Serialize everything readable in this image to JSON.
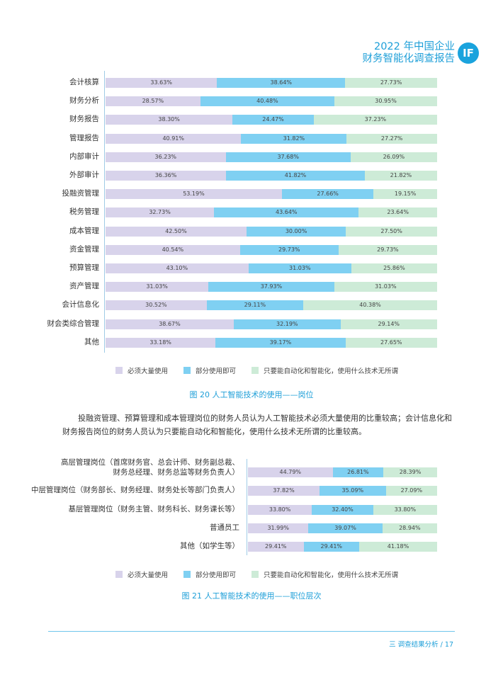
{
  "header": {
    "line1": "2022 年中国企业",
    "line2": "财务智能化调查报告",
    "logo": "IF"
  },
  "legend": {
    "a": "必须大量使用",
    "b": "部分使用即可",
    "c": "只要能自动化和智能化，使用什么技术无所谓"
  },
  "colors": {
    "a": "#d8d3eb",
    "b": "#7fd0f2",
    "c": "#cdebd7",
    "accent": "#1e9fd8"
  },
  "chart1": {
    "caption": "图 20  人工智能技术的使用——岗位",
    "rows": [
      {
        "label": "会计核算",
        "a": "33.63%",
        "b": "38.64%",
        "c": "27.73%"
      },
      {
        "label": "财务分析",
        "a": "28.57%",
        "b": "40.48%",
        "c": "30.95%"
      },
      {
        "label": "财务报告",
        "a": "38.30%",
        "b": "24.47%",
        "c": "37.23%"
      },
      {
        "label": "管理报告",
        "a": "40.91%",
        "b": "31.82%",
        "c": "27.27%"
      },
      {
        "label": "内部审计",
        "a": "36.23%",
        "b": "37.68%",
        "c": "26.09%"
      },
      {
        "label": "外部审计",
        "a": "36.36%",
        "b": "41.82%",
        "c": "21.82%"
      },
      {
        "label": "投融资管理",
        "a": "53.19%",
        "b": "27.66%",
        "c": "19.15%"
      },
      {
        "label": "税务管理",
        "a": "32.73%",
        "b": "43.64%",
        "c": "23.64%"
      },
      {
        "label": "成本管理",
        "a": "42.50%",
        "b": "30.00%",
        "c": "27.50%"
      },
      {
        "label": "资金管理",
        "a": "40.54%",
        "b": "29.73%",
        "c": "29.73%"
      },
      {
        "label": "预算管理",
        "a": "43.10%",
        "b": "31.03%",
        "c": "25.86%"
      },
      {
        "label": "资产管理",
        "a": "31.03%",
        "b": "37.93%",
        "c": "31.03%"
      },
      {
        "label": "会计信息化",
        "a": "30.52%",
        "b": "29.11%",
        "c": "40.38%"
      },
      {
        "label": "财会类综合管理",
        "a": "38.67%",
        "b": "32.19%",
        "c": "29.14%"
      },
      {
        "label": "其他",
        "a": "33.18%",
        "b": "39.17%",
        "c": "27.65%"
      }
    ]
  },
  "paragraph": "投融资管理、预算管理和成本管理岗位的财务人员认为人工智能技术必须大量使用的比重较高；会计信息化和财务报告岗位的财务人员认为只要能自动化和智能化，使用什么技术无所谓的比重较高。",
  "chart2": {
    "caption": "图 21   人工智能技术的使用——职位层次",
    "rows": [
      {
        "label1": "高层管理岗位（首席财务官、总会计师、财务副总裁、",
        "label2": "财务总经理、财务总监等财务负责人）",
        "a": "44.79%",
        "b": "26.81%",
        "c": "28.39%"
      },
      {
        "label1": "中层管理岗位（财务部长、财务经理、财务处长等部门负责人）",
        "label2": "",
        "a": "37.82%",
        "b": "35.09%",
        "c": "27.09%"
      },
      {
        "label1": "基层管理岗位（财务主管、财务科长、财务课长等）",
        "label2": "",
        "a": "33.80%",
        "b": "32.40%",
        "c": "33.80%"
      },
      {
        "label1": "普通员工",
        "label2": "",
        "a": "31.99%",
        "b": "39.07%",
        "c": "28.94%"
      },
      {
        "label1": "其他（如学生等）",
        "label2": "",
        "a": "29.41%",
        "b": "29.41%",
        "c": "41.18%"
      }
    ]
  },
  "footer": "三  调查结果分析  /  17"
}
